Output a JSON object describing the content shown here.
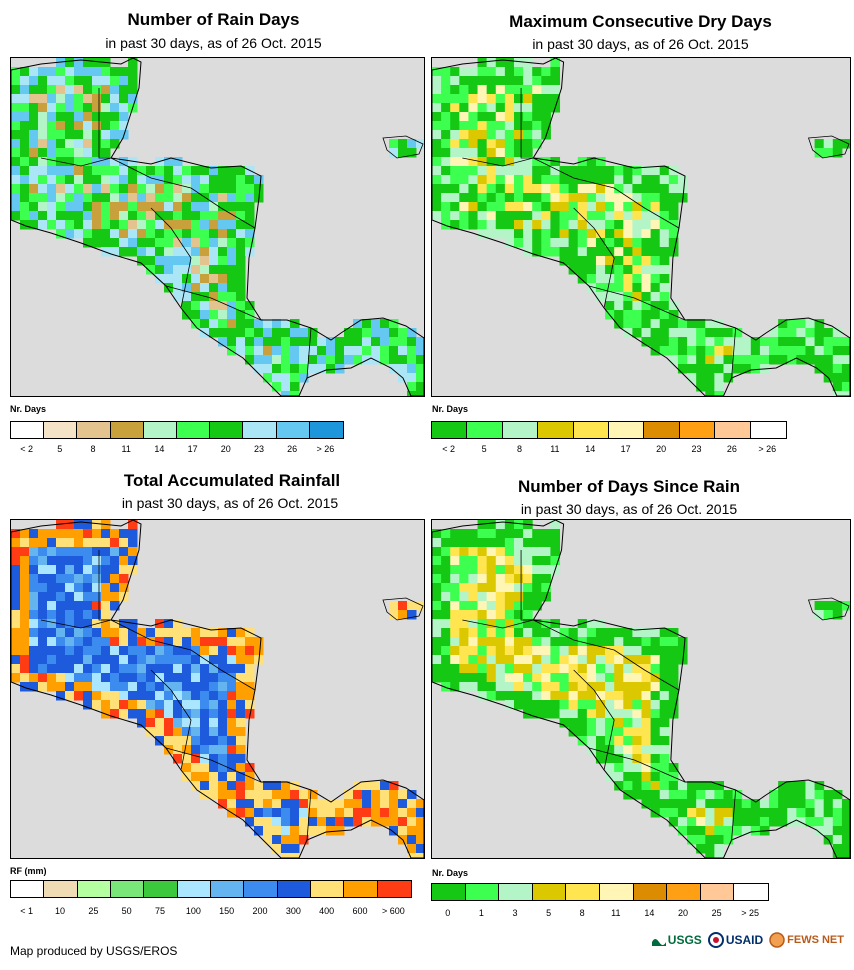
{
  "panels": [
    {
      "id": "rain-days",
      "title": "Number of Rain Days",
      "subtitle": "in past 30 days, as of 26 Oct. 2015",
      "unit": "Nr. Days",
      "legend_colors": [
        "#ffffff",
        "#f5e3c8",
        "#e3c48f",
        "#c8a03c",
        "#b4f5c8",
        "#3cff50",
        "#14c814",
        "#aae6f5",
        "#64c8f0",
        "#1e96dc"
      ],
      "legend_ticks": [
        "< 2",
        "5",
        "8",
        "11",
        "14",
        "17",
        "20",
        "23",
        "26",
        "> 26"
      ],
      "palette": [
        "#c8a03c",
        "#e3c48f",
        "#b4f5c8",
        "#3cff50",
        "#14c814",
        "#14c814",
        "#3cff50",
        "#aae6f5",
        "#64c8f0"
      ],
      "palette_coast": [
        "#3cff50",
        "#14c814",
        "#aae6f5",
        "#64c8f0",
        "#14c814"
      ]
    },
    {
      "id": "max-dry-days",
      "title": "Maximum Consecutive Dry Days",
      "subtitle": "in past 30 days, as of 26 Oct. 2015",
      "unit": "Nr. Days",
      "legend_colors": [
        "#14c814",
        "#3cff50",
        "#b4f5c8",
        "#dcc800",
        "#ffe650",
        "#fff5b4",
        "#dc8c00",
        "#ffa014",
        "#ffc896",
        "#ffffff"
      ],
      "legend_ticks": [
        "< 2",
        "5",
        "8",
        "11",
        "14",
        "17",
        "20",
        "23",
        "26",
        "> 26"
      ],
      "palette": [
        "#14c814",
        "#3cff50",
        "#b4f5c8",
        "#3cff50",
        "#14c814",
        "#ffe650",
        "#fff5b4",
        "#dcc800"
      ],
      "palette_coast": [
        "#14c814",
        "#3cff50",
        "#14c814",
        "#b4f5c8"
      ]
    },
    {
      "id": "total-rainfall",
      "title": "Total Accumulated Rainfall",
      "subtitle": "in past 30 days, as of 26 Oct. 2015",
      "unit": "RF (mm)",
      "legend_colors": [
        "#ffffff",
        "#f0dcb4",
        "#b4ffa0",
        "#78e678",
        "#3cc83c",
        "#aae6ff",
        "#64b4f0",
        "#3c8cf0",
        "#1e5adc",
        "#ffe178",
        "#ffa000",
        "#ff3c14"
      ],
      "legend_ticks": [
        "< 1",
        "10",
        "25",
        "50",
        "75",
        "100",
        "150",
        "200",
        "300",
        "400",
        "600",
        "> 600"
      ],
      "palette": [
        "#1e5adc",
        "#3c8cf0",
        "#1e5adc",
        "#3c8cf0",
        "#64b4f0",
        "#1e5adc",
        "#aae6ff"
      ],
      "palette_coast": [
        "#ffe178",
        "#ffa000",
        "#ff3c14",
        "#ffe178",
        "#1e5adc",
        "#ffa000"
      ]
    },
    {
      "id": "days-since-rain",
      "title": "Number of Days Since Rain",
      "subtitle": "in past 30 days, as of 26 Oct. 2015",
      "unit": "Nr. Days",
      "legend_colors": [
        "#14c814",
        "#3cff50",
        "#b4f5c8",
        "#dcc800",
        "#ffe650",
        "#fff5b4",
        "#dc8c00",
        "#ffa014",
        "#ffc896",
        "#ffffff"
      ],
      "legend_ticks": [
        "0",
        "1",
        "3",
        "5",
        "8",
        "11",
        "14",
        "20",
        "25",
        "> 25"
      ],
      "palette": [
        "#dcc800",
        "#ffe650",
        "#fff5b4",
        "#b4f5c8",
        "#dcc800",
        "#ffe650",
        "#3cff50"
      ],
      "palette_coast": [
        "#14c814",
        "#3cff50",
        "#14c814",
        "#b4f5c8",
        "#14c814"
      ]
    }
  ],
  "footer": {
    "credit": "Map produced by USGS/EROS"
  },
  "logos": {
    "usgs": "USGS",
    "usaid": "USAID",
    "fews": "FEWS NET"
  }
}
